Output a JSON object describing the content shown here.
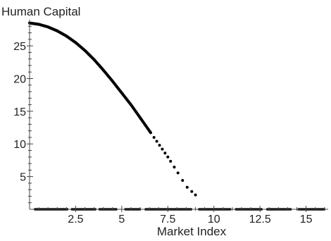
{
  "chart_data": {
    "type": "scatter",
    "title": "",
    "xlabel": "Market Index",
    "ylabel": "Human Capital",
    "xlim": [
      0,
      16.2
    ],
    "ylim": [
      0,
      29
    ],
    "x_ticks": [
      2.5,
      5,
      7.5,
      10,
      12.5,
      15
    ],
    "y_ticks": [
      5,
      10,
      15,
      20,
      25
    ],
    "x_tick_labels": [
      "2.5",
      "5",
      "7.5",
      "10",
      "12.5",
      "15"
    ],
    "y_tick_labels": [
      "5",
      "10",
      "15",
      "20",
      "25"
    ],
    "grid": false,
    "legend": "none",
    "marker_color": "#000000",
    "series": [
      {
        "curve": {
          "x": [
            0.0,
            0.5,
            1.0,
            1.5,
            2.0,
            2.5,
            3.0,
            3.5,
            4.0,
            4.5,
            5.0,
            5.5,
            6.0,
            6.5,
            7.0,
            7.5,
            8.0,
            8.5,
            9.0
          ],
          "y": [
            28.5,
            28.3,
            27.9,
            27.3,
            26.5,
            25.5,
            24.3,
            22.9,
            21.3,
            19.6,
            17.8,
            16.0,
            14.0,
            12.0,
            10.0,
            8.0,
            5.8,
            3.5,
            2.2
          ]
        },
        "zero_cluster_segments": [
          [
            0.3,
            2.1
          ],
          [
            2.3,
            3.6
          ],
          [
            3.8,
            4.7
          ],
          [
            5.2,
            6.0
          ],
          [
            6.3,
            8.8
          ],
          [
            9.2,
            10.9
          ],
          [
            11.2,
            12.6
          ],
          [
            12.9,
            14.2
          ],
          [
            14.6,
            16.0
          ]
        ]
      }
    ]
  }
}
